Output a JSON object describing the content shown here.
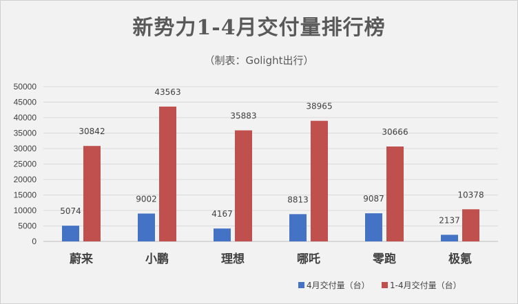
{
  "chart_data": {
    "type": "bar",
    "title": "新势力1-4月交付量排行榜",
    "subtitle": "（制表：Golight出行）",
    "categories": [
      "蔚来",
      "小鹏",
      "理想",
      "哪吒",
      "零跑",
      "极氪"
    ],
    "series": [
      {
        "name": "4月交付量（台）",
        "color": "#4472c4",
        "values": [
          5074,
          9002,
          4167,
          8813,
          9087,
          2137
        ]
      },
      {
        "name": "1-4月交付量（台）",
        "color": "#c0504d",
        "values": [
          30842,
          43563,
          35883,
          38965,
          30666,
          10378
        ]
      }
    ],
    "ylim": [
      0,
      50000
    ],
    "yticks": [
      0,
      5000,
      10000,
      15000,
      20000,
      25000,
      30000,
      35000,
      40000,
      45000,
      50000
    ],
    "grid": true,
    "legend": "bottom-right"
  }
}
